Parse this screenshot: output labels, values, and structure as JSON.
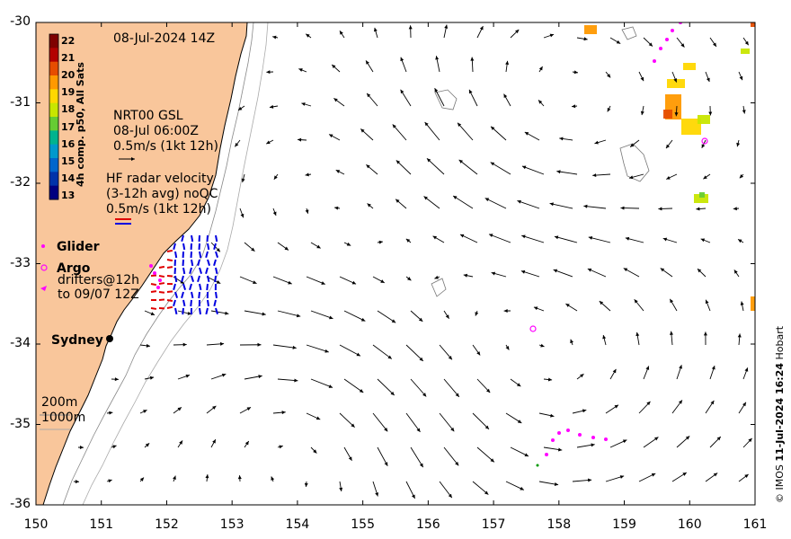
{
  "map": {
    "timestamp": "08-Jul-2024 14Z",
    "credit_prefix": "© IMOS ",
    "credit_date": "11-Jul-2024 16:24",
    "credit_suffix": " Hobart",
    "xlim": [
      150,
      161
    ],
    "ylim": [
      -36,
      -30
    ],
    "x_ticks": [
      "150",
      "151",
      "152",
      "153",
      "154",
      "155",
      "156",
      "157",
      "158",
      "159",
      "160",
      "161"
    ],
    "y_ticks": [
      "-30",
      "-31",
      "-32",
      "-33",
      "-34",
      "-35",
      "-36"
    ],
    "colors": {
      "land": "#f9c69b",
      "ocean": "#ffffff",
      "arrows": "#000000",
      "hf_radar_red": "#e00000",
      "hf_radar_blue": "#0000e0",
      "glider": "#ff00ff",
      "argo": "#ff00ff"
    }
  },
  "colorbar": {
    "title": "4h comp. p50, All Sats",
    "values": [
      "22",
      "21",
      "20",
      "19",
      "18",
      "17",
      "16",
      "15",
      "14",
      "13"
    ],
    "colors": [
      "#7f0000",
      "#b30000",
      "#e64d00",
      "#ff9900",
      "#ffd700",
      "#c8e600",
      "#66cc33",
      "#00b38f",
      "#0099cc",
      "#0066cc",
      "#0033aa",
      "#000080"
    ]
  },
  "legend": {
    "gsl_line1": "NRT00 GSL",
    "gsl_line2": "08-Jul 06:00Z",
    "gsl_line3": "0.5m/s (1kt 12h)",
    "hf_line1": "HF radar velocity",
    "hf_line2": "(3-12h avg) noQC",
    "hf_line3": "0.5m/s (1kt 12h)",
    "glider": "Glider",
    "argo": "Argo",
    "drifters_line1": "drifters@12h",
    "drifters_line2": "to 09/07 12Z",
    "city": "Sydney",
    "depth_200": "200m",
    "depth_1000": "1000m"
  }
}
